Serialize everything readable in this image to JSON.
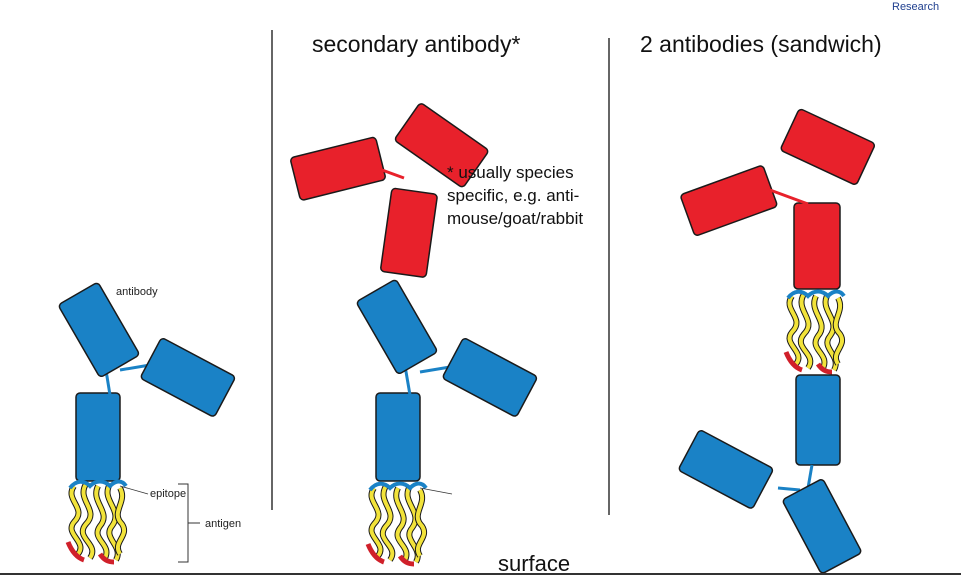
{
  "brand": {
    "text": "Research"
  },
  "panels": {
    "secondary": {
      "title": "secondary antibody*",
      "note": [
        "* usually species",
        "specific, e.g. anti-",
        "mouse/goat/rabbit"
      ]
    },
    "sandwich": {
      "title": "2 antibodies (sandwich)"
    }
  },
  "labels": {
    "antibody": "antibody",
    "epitope": "epitope",
    "antigen": "antigen",
    "surface": "surface"
  },
  "colors": {
    "primary_antibody": "#1a82c6",
    "secondary_antibody": "#e8212b",
    "antigen_coil": "#f2e33a",
    "antigen_end": "#d0202a",
    "outline": "#1a1a1a"
  }
}
